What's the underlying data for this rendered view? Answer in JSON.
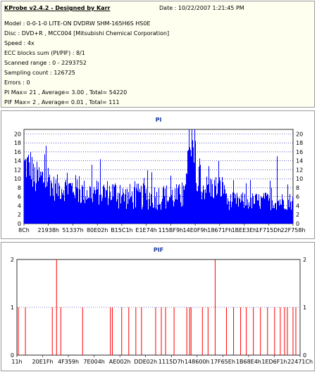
{
  "info": {
    "title": "KProbe v2.4.2 - Designed by Karr",
    "date": "Date : 10/22/2007 1:21:45 PM",
    "lines": [
      "Model : 0-0-1-0 LITE-ON DVDRW SHM-165H6S HS0E",
      "Disc : DVD+R , MCC004 [Mitsubishi Chemical Corporation]",
      "Speed : 4x",
      "ECC blocks sum (PI/PIF) : 8/1",
      "Scanned range : 0 - 2293752",
      "Sampling count : 126725",
      "Errors : 0",
      "PI Max= 21 , Average= 3.00 , Total= 54220",
      "PIF Max= 2 , Average= 0.01 , Total= 111"
    ]
  },
  "colors": {
    "pi": "#0000ff",
    "pif": "#ff0000",
    "title": "#1a3aa0",
    "grid": "#0000a0"
  },
  "chart_data": [
    {
      "type": "bar",
      "title": "PI",
      "ylim": [
        0,
        21
      ],
      "yticks": [
        0,
        2,
        4,
        6,
        8,
        10,
        12,
        14,
        16,
        18,
        20
      ],
      "xticks": [
        "8Ch",
        "21938h",
        "51337h",
        "80E02h",
        "B15C1h",
        "E1E74h",
        "115BF9h",
        "14E0F9h",
        "18671Fh",
        "1BEE3Eh",
        "1F715Dh",
        "22F758h"
      ],
      "grid": "horizontal dotted",
      "segments": [
        {
          "from": 0.0,
          "to": 0.03,
          "base": 13,
          "spread": 4
        },
        {
          "from": 0.03,
          "to": 0.1,
          "base": 10,
          "spread": 4
        },
        {
          "from": 0.1,
          "to": 0.2,
          "base": 8,
          "spread": 3
        },
        {
          "from": 0.2,
          "to": 0.35,
          "base": 7,
          "spread": 3
        },
        {
          "from": 0.35,
          "to": 0.6,
          "base": 6,
          "spread": 3
        },
        {
          "from": 0.6,
          "to": 0.64,
          "base": 14,
          "spread": 5
        },
        {
          "from": 0.64,
          "to": 0.75,
          "base": 8,
          "spread": 3
        },
        {
          "from": 0.75,
          "to": 1.0,
          "base": 5,
          "spread": 2
        }
      ],
      "peaks": [
        {
          "x": 0.612,
          "y": 21
        },
        {
          "x": 0.94,
          "y": 15
        },
        {
          "x": 0.615,
          "y": 17
        }
      ]
    },
    {
      "type": "bar",
      "title": "PIF",
      "ylim": [
        0,
        2
      ],
      "yticks": [
        0,
        1,
        2
      ],
      "xticks": [
        "11h",
        "20E1Fh",
        "4F359h",
        "7E004h",
        "AE002h",
        "DDE02h",
        "1115D7h",
        "148600h",
        "17F65Eh",
        "1B68E4h",
        "1ED6F1h",
        "22471Ch"
      ],
      "grid": "horizontal dotted",
      "spikes": [
        {
          "x": 0.005,
          "v": 1
        },
        {
          "x": 0.03,
          "v": 1
        },
        {
          "x": 0.125,
          "v": 1
        },
        {
          "x": 0.14,
          "v": 2
        },
        {
          "x": 0.155,
          "v": 1
        },
        {
          "x": 0.232,
          "v": 1
        },
        {
          "x": 0.33,
          "v": 1
        },
        {
          "x": 0.337,
          "v": 1
        },
        {
          "x": 0.37,
          "v": 1
        },
        {
          "x": 0.395,
          "v": 1
        },
        {
          "x": 0.42,
          "v": 1
        },
        {
          "x": 0.44,
          "v": 1
        },
        {
          "x": 0.49,
          "v": 1
        },
        {
          "x": 0.51,
          "v": 1
        },
        {
          "x": 0.525,
          "v": 1
        },
        {
          "x": 0.555,
          "v": 1
        },
        {
          "x": 0.6,
          "v": 1
        },
        {
          "x": 0.61,
          "v": 1
        },
        {
          "x": 0.615,
          "v": 1
        },
        {
          "x": 0.655,
          "v": 1
        },
        {
          "x": 0.675,
          "v": 1
        },
        {
          "x": 0.7,
          "v": 2
        },
        {
          "x": 0.74,
          "v": 1
        },
        {
          "x": 0.765,
          "v": 1
        },
        {
          "x": 0.79,
          "v": 1
        },
        {
          "x": 0.81,
          "v": 1
        },
        {
          "x": 0.835,
          "v": 1
        },
        {
          "x": 0.86,
          "v": 1
        },
        {
          "x": 0.885,
          "v": 1
        },
        {
          "x": 0.91,
          "v": 1
        },
        {
          "x": 0.93,
          "v": 1
        },
        {
          "x": 0.945,
          "v": 1
        },
        {
          "x": 0.955,
          "v": 1
        },
        {
          "x": 0.975,
          "v": 1
        },
        {
          "x": 0.985,
          "v": 1
        }
      ]
    }
  ]
}
